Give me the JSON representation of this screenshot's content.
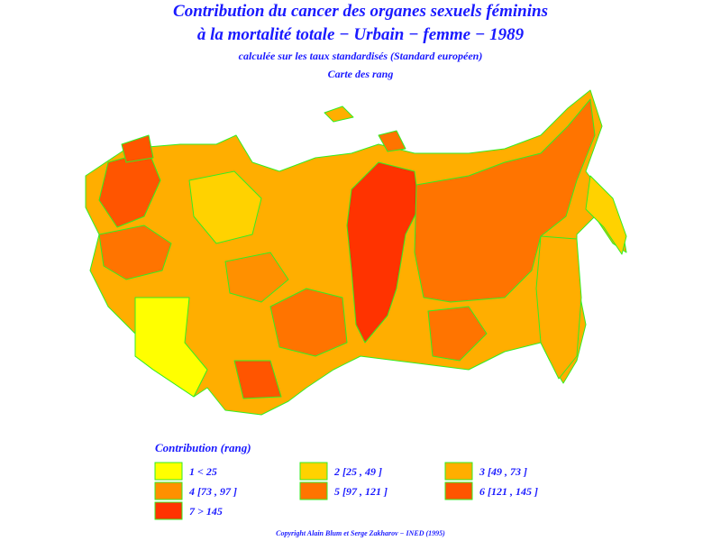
{
  "header": {
    "title_line1": "Contribution du cancer des organes sexuels féminins",
    "title_line2": "à la mortalité totale − Urbain − femme − 1989",
    "subtitle": "calculée sur les taux standardisés (Standard européen)",
    "map_caption": "Carte des rang"
  },
  "legend": {
    "title": "Contribution (rang)",
    "items": [
      {
        "label": "1  <  25",
        "color": "#ffff00"
      },
      {
        "label": "2 [25 , 49 ]",
        "color": "#ffd200"
      },
      {
        "label": "3 [49 , 73 ]",
        "color": "#ffae00"
      },
      {
        "label": "4 [73 , 97 ]",
        "color": "#ff9000"
      },
      {
        "label": "5 [97 , 121 ]",
        "color": "#ff7400"
      },
      {
        "label": "6 [121 , 145 ]",
        "color": "#ff5500"
      },
      {
        "label": "7  >  145",
        "color": "#ff3300"
      }
    ]
  },
  "footer": {
    "copyright": "Copyright Alain Blum et Serge Zakharov − INED (1995)"
  }
}
